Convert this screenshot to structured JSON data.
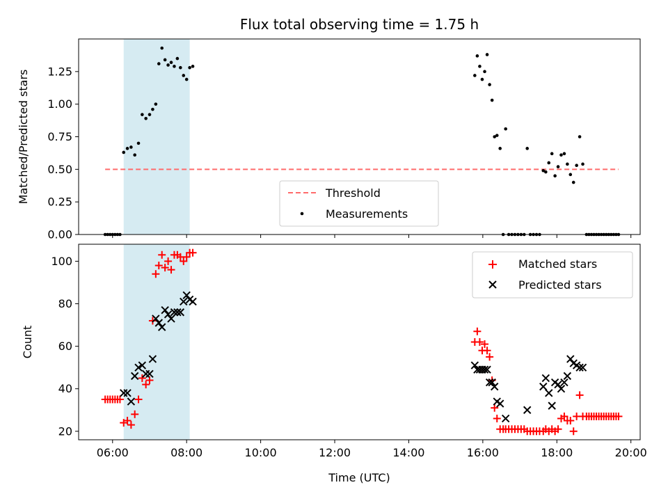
{
  "chart_data": [
    {
      "type": "scatter",
      "title": "Flux total observing time = 1.75 h",
      "ylabel": "Matched/Predicted stars",
      "xlim": [
        "05:05",
        "20:15"
      ],
      "ylim": [
        0,
        1.5
      ],
      "xticks": [
        "06:00",
        "08:00",
        "10:00",
        "12:00",
        "14:00",
        "16:00",
        "18:00",
        "20:00"
      ],
      "yticks": [
        "0.00",
        "0.25",
        "0.50",
        "0.75",
        "1.00",
        "1.25"
      ],
      "shaded_interval": [
        "06:18",
        "08:05"
      ],
      "shaded_color": "#add8e6",
      "legend_position": "lower-center",
      "threshold": {
        "name": "Threshold",
        "value": 0.5,
        "x_range": [
          "05:48",
          "19:40"
        ],
        "color": "#ff6b6b"
      },
      "series": [
        {
          "name": "Measurements",
          "color": "#000000",
          "marker": "dot",
          "points": [
            [
              "05:48",
              0
            ],
            [
              "05:52",
              0
            ],
            [
              "05:56",
              0
            ],
            [
              "06:00",
              0
            ],
            [
              "06:04",
              0
            ],
            [
              "06:08",
              0
            ],
            [
              "06:12",
              0
            ],
            [
              "06:18",
              0.63
            ],
            [
              "06:24",
              0.66
            ],
            [
              "06:30",
              0.67
            ],
            [
              "06:36",
              0.61
            ],
            [
              "06:42",
              0.7
            ],
            [
              "06:48",
              0.92
            ],
            [
              "06:54",
              0.89
            ],
            [
              "07:00",
              0.92
            ],
            [
              "07:05",
              0.96
            ],
            [
              "07:10",
              1.0
            ],
            [
              "07:15",
              1.31
            ],
            [
              "07:20",
              1.43
            ],
            [
              "07:25",
              1.34
            ],
            [
              "07:30",
              1.3
            ],
            [
              "07:35",
              1.32
            ],
            [
              "07:40",
              1.29
            ],
            [
              "07:45",
              1.35
            ],
            [
              "07:50",
              1.28
            ],
            [
              "07:55",
              1.22
            ],
            [
              "08:00",
              1.19
            ],
            [
              "08:05",
              1.28
            ],
            [
              "08:10",
              1.29
            ],
            [
              "15:47",
              1.22
            ],
            [
              "15:51",
              1.37
            ],
            [
              "15:55",
              1.29
            ],
            [
              "15:59",
              1.19
            ],
            [
              "16:03",
              1.25
            ],
            [
              "16:07",
              1.38
            ],
            [
              "16:11",
              1.15
            ],
            [
              "16:15",
              1.03
            ],
            [
              "16:19",
              0.75
            ],
            [
              "16:23",
              0.76
            ],
            [
              "16:28",
              0.66
            ],
            [
              "16:33",
              0.0
            ],
            [
              "16:37",
              0.81
            ],
            [
              "16:42",
              0.0
            ],
            [
              "16:47",
              0.0
            ],
            [
              "16:52",
              0.0
            ],
            [
              "16:57",
              0.0
            ],
            [
              "17:02",
              0.0
            ],
            [
              "17:07",
              0.0
            ],
            [
              "17:12",
              0.66
            ],
            [
              "17:17",
              0.0
            ],
            [
              "17:22",
              0.0
            ],
            [
              "17:27",
              0.0
            ],
            [
              "17:32",
              0.0
            ],
            [
              "17:38",
              0.49
            ],
            [
              "17:42",
              0.48
            ],
            [
              "17:47",
              0.55
            ],
            [
              "17:52",
              0.62
            ],
            [
              "17:57",
              0.45
            ],
            [
              "18:02",
              0.52
            ],
            [
              "18:07",
              0.61
            ],
            [
              "18:12",
              0.62
            ],
            [
              "18:17",
              0.54
            ],
            [
              "18:22",
              0.46
            ],
            [
              "18:27",
              0.4
            ],
            [
              "18:32",
              0.53
            ],
            [
              "18:37",
              0.75
            ],
            [
              "18:42",
              0.54
            ],
            [
              "18:48",
              0
            ],
            [
              "18:52",
              0
            ],
            [
              "18:56",
              0
            ],
            [
              "19:00",
              0
            ],
            [
              "19:04",
              0
            ],
            [
              "19:08",
              0
            ],
            [
              "19:12",
              0
            ],
            [
              "19:16",
              0
            ],
            [
              "19:20",
              0
            ],
            [
              "19:24",
              0
            ],
            [
              "19:28",
              0
            ],
            [
              "19:32",
              0
            ],
            [
              "19:36",
              0
            ],
            [
              "19:40",
              0
            ]
          ]
        }
      ]
    },
    {
      "type": "scatter",
      "xlabel": "Time (UTC)",
      "ylabel": "Count",
      "xlim": [
        "05:05",
        "20:15"
      ],
      "ylim": [
        16,
        108
      ],
      "xticks": [
        "06:00",
        "08:00",
        "10:00",
        "12:00",
        "14:00",
        "16:00",
        "18:00",
        "20:00"
      ],
      "yticks": [
        "20",
        "40",
        "60",
        "80",
        "100"
      ],
      "shaded_interval": [
        "06:18",
        "08:05"
      ],
      "shaded_color": "#add8e6",
      "legend_position": "top-right",
      "series": [
        {
          "name": "Matched stars",
          "color": "#ff0000",
          "marker": "plus",
          "points": [
            [
              "05:48",
              35
            ],
            [
              "05:52",
              35
            ],
            [
              "05:56",
              35
            ],
            [
              "06:00",
              35
            ],
            [
              "06:04",
              35
            ],
            [
              "06:08",
              35
            ],
            [
              "06:12",
              35
            ],
            [
              "06:18",
              24
            ],
            [
              "06:24",
              25
            ],
            [
              "06:30",
              23
            ],
            [
              "06:36",
              28
            ],
            [
              "06:42",
              35
            ],
            [
              "06:48",
              45
            ],
            [
              "06:54",
              42
            ],
            [
              "07:00",
              44
            ],
            [
              "07:05",
              72
            ],
            [
              "07:10",
              94
            ],
            [
              "07:15",
              98
            ],
            [
              "07:20",
              103
            ],
            [
              "07:25",
              97
            ],
            [
              "07:30",
              100
            ],
            [
              "07:35",
              96
            ],
            [
              "07:40",
              103
            ],
            [
              "07:45",
              103
            ],
            [
              "07:50",
              102
            ],
            [
              "07:55",
              100
            ],
            [
              "08:00",
              102
            ],
            [
              "08:05",
              104
            ],
            [
              "08:10",
              104
            ],
            [
              "15:47",
              62
            ],
            [
              "15:51",
              67
            ],
            [
              "15:55",
              62
            ],
            [
              "15:59",
              58
            ],
            [
              "16:03",
              61
            ],
            [
              "16:07",
              58
            ],
            [
              "16:11",
              55
            ],
            [
              "16:15",
              44
            ],
            [
              "16:19",
              31
            ],
            [
              "16:23",
              26
            ],
            [
              "16:28",
              21
            ],
            [
              "16:33",
              21
            ],
            [
              "16:37",
              21
            ],
            [
              "16:42",
              21
            ],
            [
              "16:47",
              21
            ],
            [
              "16:52",
              21
            ],
            [
              "16:57",
              21
            ],
            [
              "17:02",
              21
            ],
            [
              "17:07",
              21
            ],
            [
              "17:12",
              20
            ],
            [
              "17:17",
              20
            ],
            [
              "17:22",
              20
            ],
            [
              "17:27",
              20
            ],
            [
              "17:32",
              20
            ],
            [
              "17:38",
              20
            ],
            [
              "17:42",
              21
            ],
            [
              "17:47",
              20
            ],
            [
              "17:52",
              21
            ],
            [
              "17:57",
              20
            ],
            [
              "18:02",
              21
            ],
            [
              "18:07",
              26
            ],
            [
              "18:12",
              27
            ],
            [
              "18:17",
              25
            ],
            [
              "18:22",
              25
            ],
            [
              "18:27",
              20
            ],
            [
              "18:32",
              27
            ],
            [
              "18:37",
              37
            ],
            [
              "18:42",
              27
            ],
            [
              "18:48",
              27
            ],
            [
              "18:52",
              27
            ],
            [
              "18:56",
              27
            ],
            [
              "19:00",
              27
            ],
            [
              "19:04",
              27
            ],
            [
              "19:08",
              27
            ],
            [
              "19:12",
              27
            ],
            [
              "19:16",
              27
            ],
            [
              "19:20",
              27
            ],
            [
              "19:24",
              27
            ],
            [
              "19:28",
              27
            ],
            [
              "19:32",
              27
            ],
            [
              "19:36",
              27
            ],
            [
              "19:40",
              27
            ]
          ]
        },
        {
          "name": "Predicted stars",
          "color": "#000000",
          "marker": "x",
          "points": [
            [
              "06:18",
              38
            ],
            [
              "06:24",
              38
            ],
            [
              "06:30",
              34
            ],
            [
              "06:36",
              46
            ],
            [
              "06:42",
              50
            ],
            [
              "06:48",
              51
            ],
            [
              "06:54",
              47
            ],
            [
              "07:00",
              47
            ],
            [
              "07:05",
              54
            ],
            [
              "07:10",
              73
            ],
            [
              "07:15",
              71
            ],
            [
              "07:20",
              69
            ],
            [
              "07:25",
              77
            ],
            [
              "07:30",
              75
            ],
            [
              "07:35",
              73
            ],
            [
              "07:40",
              76
            ],
            [
              "07:45",
              76
            ],
            [
              "07:50",
              76
            ],
            [
              "07:55",
              81
            ],
            [
              "08:00",
              84
            ],
            [
              "08:05",
              82
            ],
            [
              "08:10",
              81
            ],
            [
              "15:47",
              51
            ],
            [
              "15:51",
              49
            ],
            [
              "15:55",
              49
            ],
            [
              "15:59",
              49
            ],
            [
              "16:03",
              49
            ],
            [
              "16:07",
              49
            ],
            [
              "16:11",
              43
            ],
            [
              "16:15",
              43
            ],
            [
              "16:19",
              41
            ],
            [
              "16:23",
              34
            ],
            [
              "16:28",
              33
            ],
            [
              "16:37",
              26
            ],
            [
              "17:12",
              30
            ],
            [
              "17:38",
              41
            ],
            [
              "17:42",
              45
            ],
            [
              "17:47",
              38
            ],
            [
              "17:52",
              32
            ],
            [
              "17:57",
              43
            ],
            [
              "18:02",
              42
            ],
            [
              "18:07",
              40
            ],
            [
              "18:12",
              43
            ],
            [
              "18:17",
              46
            ],
            [
              "18:22",
              54
            ],
            [
              "18:27",
              52
            ],
            [
              "18:32",
              51
            ],
            [
              "18:37",
              50
            ],
            [
              "18:42",
              50
            ]
          ]
        }
      ]
    }
  ]
}
